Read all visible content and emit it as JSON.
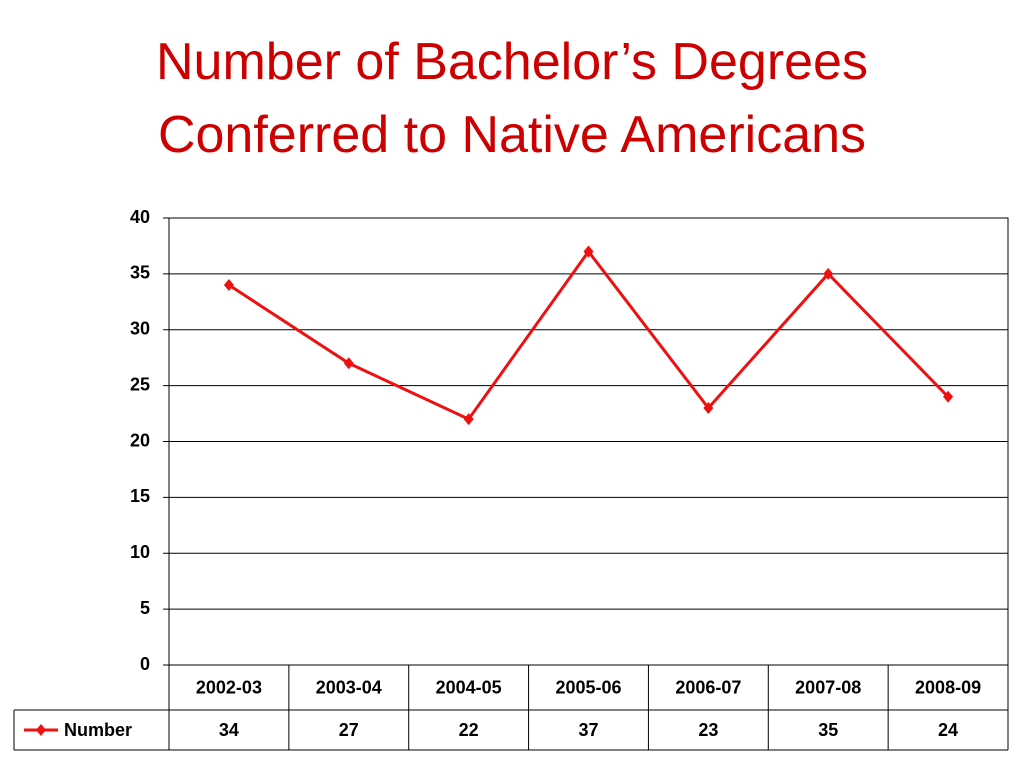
{
  "chart_data": {
    "type": "line",
    "title": "Number of Bachelor’s Degrees Conferred to Native Americans",
    "categories": [
      "2002-03",
      "2003-04",
      "2004-05",
      "2005-06",
      "2006-07",
      "2007-08",
      "2008-09"
    ],
    "series": [
      {
        "name": "Number",
        "color": "#ee1111",
        "values": [
          34,
          27,
          22,
          37,
          23,
          35,
          24
        ]
      }
    ],
    "ylim": [
      0,
      40
    ],
    "yticks": [
      0,
      5,
      10,
      15,
      20,
      25,
      30,
      35,
      40
    ],
    "grid": true,
    "data_table": true
  }
}
